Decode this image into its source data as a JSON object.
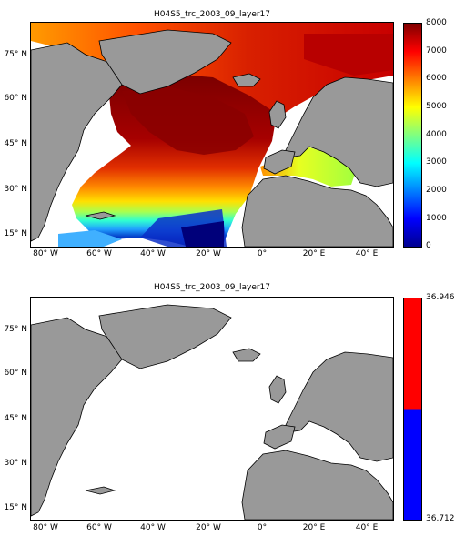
{
  "maps": [
    {
      "title": "H04S5_trc_2003_09_layer17",
      "colorbar": {
        "type": "continuous",
        "colormap": "jet",
        "range": [
          0,
          8000
        ],
        "ticks": [
          "8000",
          "7000",
          "6000",
          "5000",
          "4000",
          "3000",
          "2000",
          "1000",
          "0"
        ]
      }
    },
    {
      "title": "H04S5_trc_2003_09_layer17",
      "colorbar": {
        "type": "two-class",
        "colors": [
          "#ff0000",
          "#0000ff"
        ],
        "ticks": [
          "36.946",
          "36.712"
        ]
      }
    }
  ],
  "axes": {
    "x_ticks": [
      "80° W",
      "60° W",
      "40° W",
      "20° W",
      "0°",
      "20° E",
      "40° E"
    ],
    "y_ticks": [
      "75° N",
      "60° N",
      "45° N",
      "30° N",
      "15° N"
    ]
  },
  "colors": {
    "land": "#999999",
    "no_data": "#ffffff",
    "outline": "#000000"
  }
}
